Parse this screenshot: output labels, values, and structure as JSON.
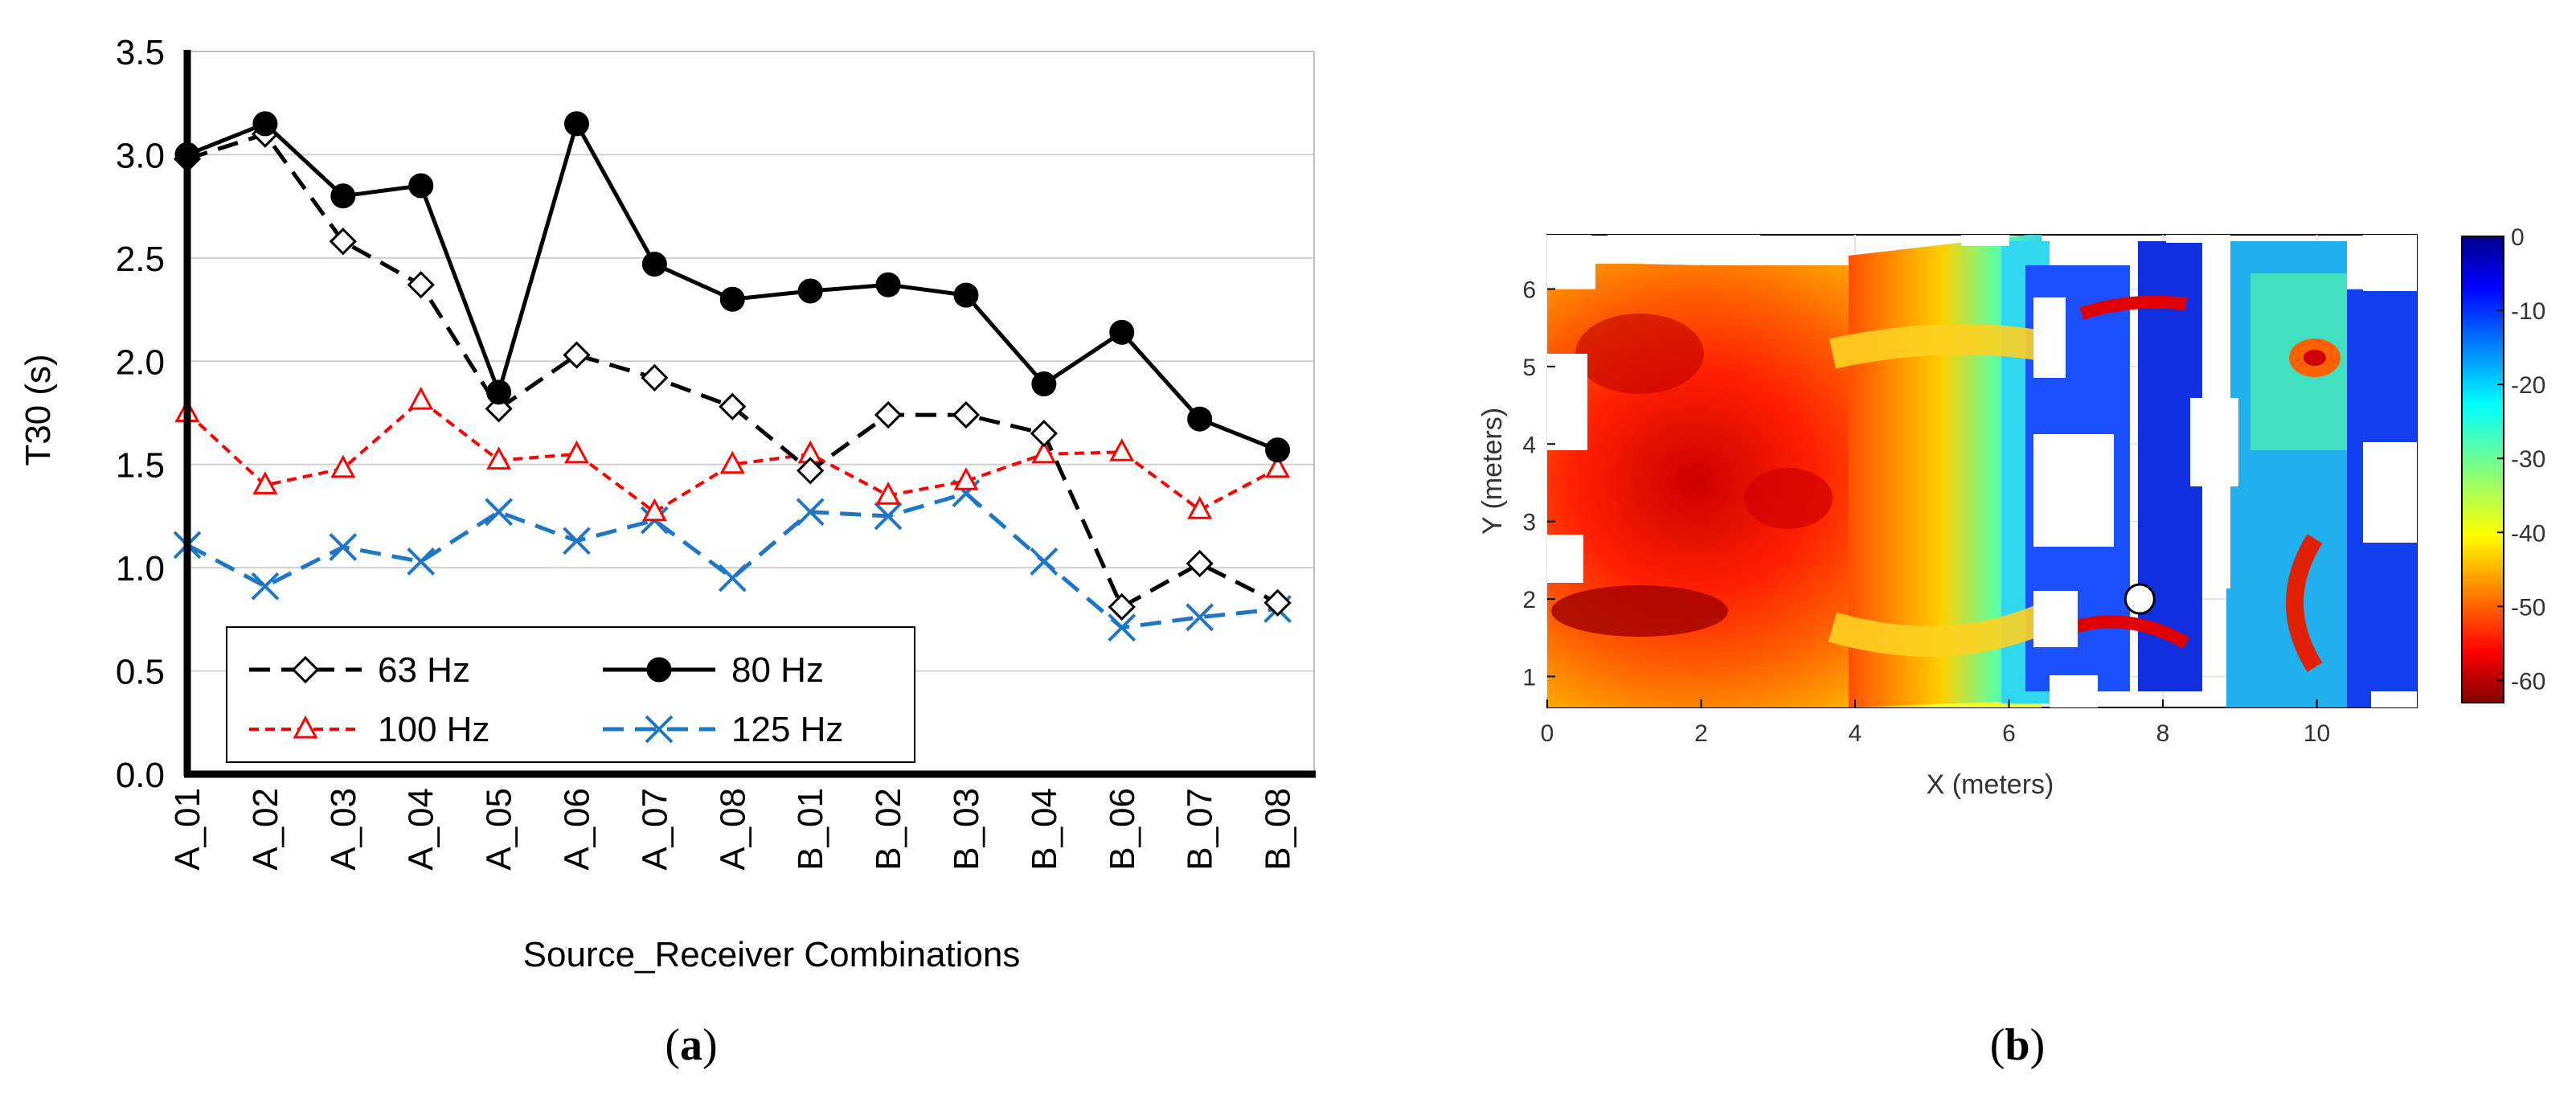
{
  "chart_data": [
    {
      "type": "line",
      "panel_label": "a",
      "xlabel": "Source_Receiver Combinations",
      "ylabel": "T30 (s)",
      "ylim": [
        0,
        3.5
      ],
      "yticks": [
        "0.0",
        "0.5",
        "1.0",
        "1.5",
        "2.0",
        "2.5",
        "3.0",
        "3.5"
      ],
      "grid": "horizontal",
      "legend_position": "bottom-left",
      "categories": [
        "A_01",
        "A_02",
        "A_03",
        "A_04",
        "A_05",
        "A_06",
        "A_07",
        "A_08",
        "B_01",
        "B_02",
        "B_03",
        "B_04",
        "B_06",
        "B_07",
        "B_08"
      ],
      "series": [
        {
          "name": "63 Hz",
          "color": "#000000",
          "dash": "long-dash",
          "marker": "diamond-open",
          "values": [
            2.98,
            3.1,
            2.58,
            2.37,
            1.77,
            2.03,
            1.92,
            1.78,
            1.47,
            1.74,
            1.74,
            1.65,
            0.81,
            1.02,
            0.83
          ]
        },
        {
          "name": "80 Hz",
          "color": "#000000",
          "dash": "solid",
          "marker": "circle-filled",
          "values": [
            3.0,
            3.15,
            2.8,
            2.85,
            1.85,
            3.15,
            2.47,
            2.3,
            2.34,
            2.37,
            2.32,
            1.89,
            2.14,
            1.72,
            1.57
          ]
        },
        {
          "name": "100 Hz",
          "color": "#ff0000",
          "dash": "short-dash",
          "marker": "triangle-open",
          "values": [
            1.75,
            1.4,
            1.48,
            1.81,
            1.52,
            1.55,
            1.27,
            1.5,
            1.55,
            1.35,
            1.42,
            1.55,
            1.56,
            1.28,
            1.48
          ]
        },
        {
          "name": "125 Hz",
          "color": "#1f77c4",
          "dash": "long-dash",
          "marker": "x",
          "values": [
            1.11,
            0.91,
            1.1,
            1.03,
            1.27,
            1.13,
            1.23,
            0.95,
            1.27,
            1.25,
            1.36,
            1.03,
            0.71,
            0.76,
            0.8
          ]
        }
      ]
    },
    {
      "type": "heatmap",
      "panel_label": "b",
      "xlabel": "X (meters)",
      "ylabel": "Y (meters)",
      "xlim": [
        0,
        11.3
      ],
      "ylim": [
        0.6,
        6.7
      ],
      "xticks": [
        "0",
        "2",
        "4",
        "6",
        "8",
        "10"
      ],
      "yticks": [
        "1",
        "2",
        "3",
        "4",
        "5",
        "6"
      ],
      "colorbar": {
        "min": -63,
        "max": 0,
        "ticks": [
          "0",
          "-10",
          "-20",
          "-30",
          "-40",
          "-50",
          "-60"
        ],
        "colormap": "jet",
        "low_color": "#800000",
        "high_color": "#00008f"
      },
      "source_marker": {
        "x": 7.7,
        "y": 2.0
      }
    }
  ],
  "panel_labels": {
    "a": "a",
    "b": "b"
  }
}
